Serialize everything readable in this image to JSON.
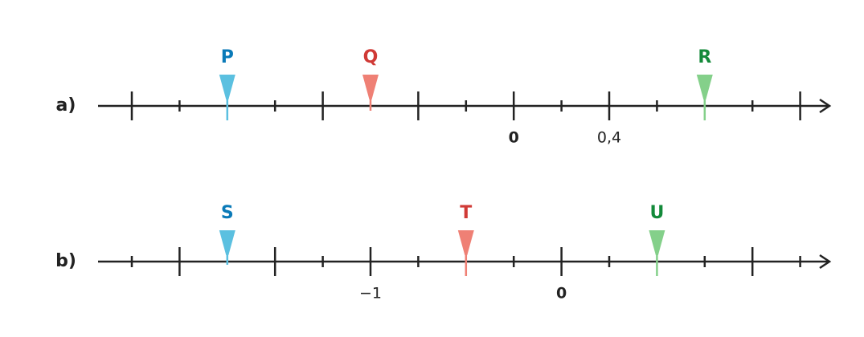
{
  "lines": [
    {
      "label": "a)",
      "points": [
        {
          "label": "P"
        },
        {
          "label": "Q"
        },
        {
          "label": "R"
        }
      ],
      "tick_labels": [
        "0",
        "0,4"
      ]
    },
    {
      "label": "b)",
      "points": [
        {
          "label": "S"
        },
        {
          "label": "T"
        },
        {
          "label": "U"
        }
      ],
      "tick_labels": [
        "−1",
        "0"
      ]
    }
  ]
}
